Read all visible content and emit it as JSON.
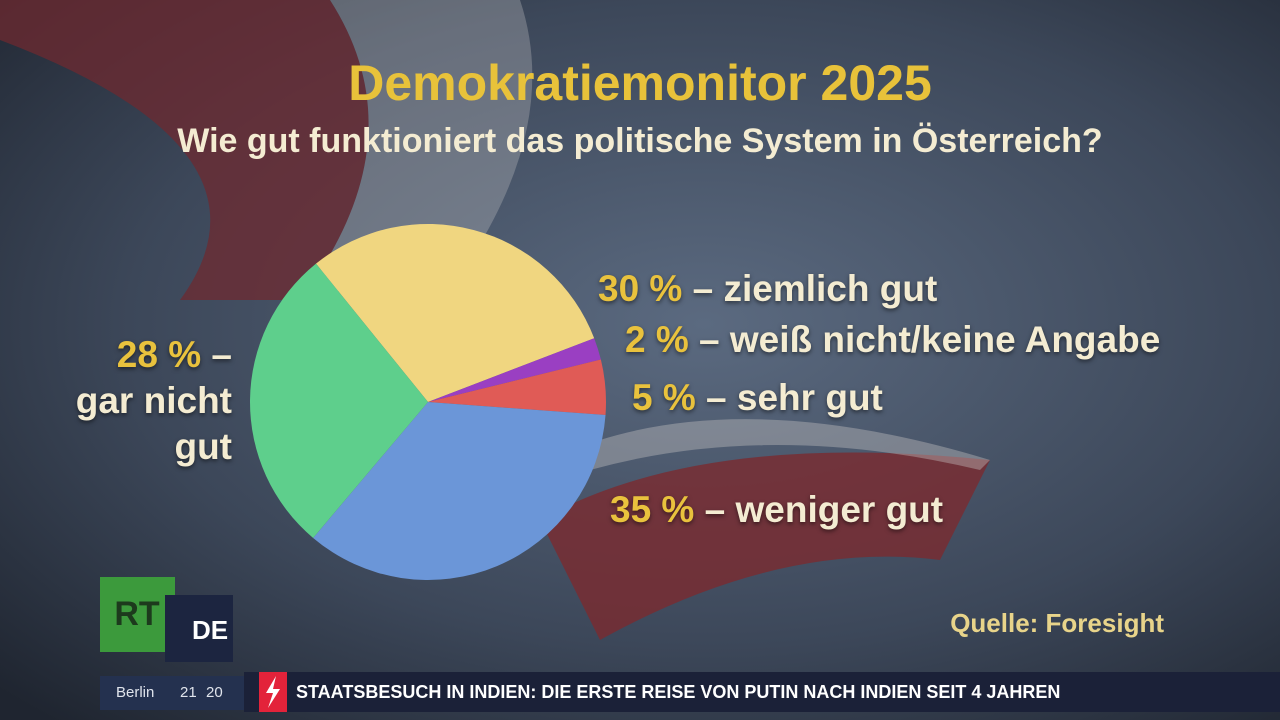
{
  "chart_data": {
    "type": "pie",
    "title": "Demokratiemonitor 2025",
    "subtitle": "Wie gut funktioniert das politische System in Österreich?",
    "categories": [
      "– ziemlich gut",
      "– weiß nicht/keine Angabe",
      "– sehr gut",
      "– weniger gut",
      "– gar nicht gut"
    ],
    "values": [
      30,
      2,
      5,
      35,
      28
    ],
    "value_labels": [
      "30 %",
      "2 %",
      "5 %",
      "35 %",
      "28 %"
    ],
    "colors": [
      "#f0d680",
      "#9a3fc2",
      "#e05b56",
      "#6b96d8",
      "#5ecf8c"
    ],
    "source": "Quelle: Foresight"
  },
  "logo": {
    "primary": "RT",
    "secondary": "DE"
  },
  "ticker": {
    "city": "Berlin",
    "hours": "21",
    "minutes": "20",
    "headline": "STAATSBESUCH IN INDIEN: DIE ERSTE REISE VON PUTIN NACH INDIEN SEIT 4 JAHREN"
  }
}
